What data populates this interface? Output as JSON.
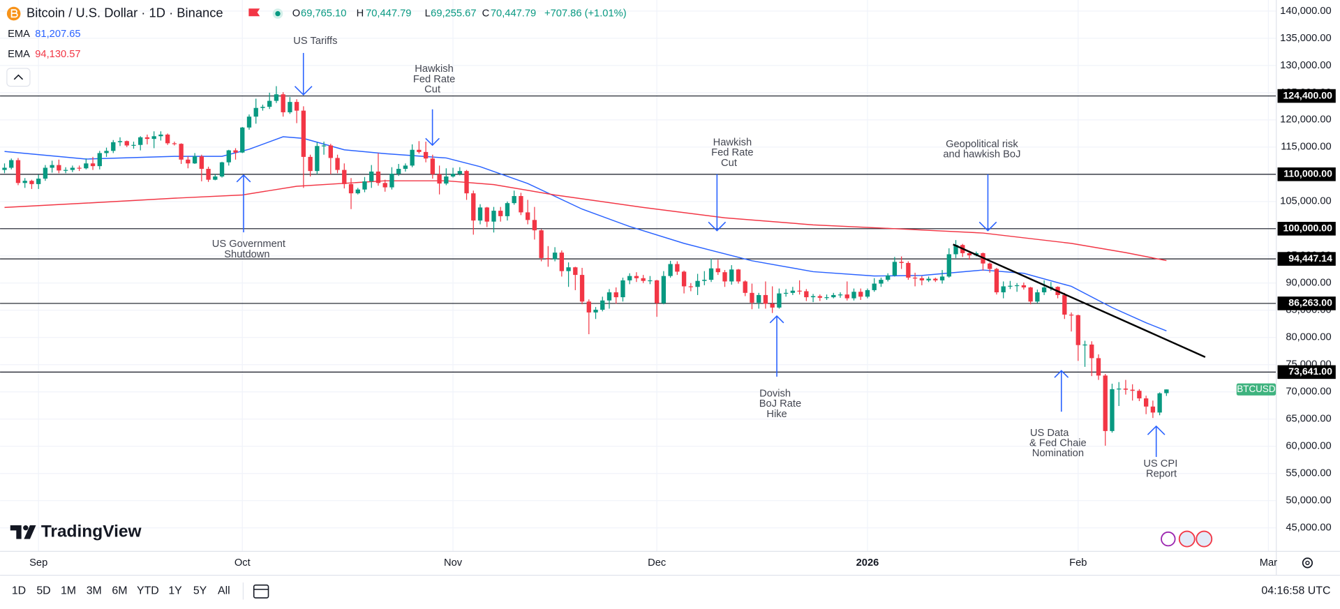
{
  "header": {
    "symbol": "Bitcoin / U.S. Dollar · 1D · Binance",
    "ohlc": [
      {
        "label": "O",
        "value": "69,765.10"
      },
      {
        "label": "H",
        "value": "70,447.79"
      },
      {
        "label": "L",
        "value": "69,255.67"
      },
      {
        "label": "C",
        "value": "70,447.79"
      }
    ],
    "change": "+707.86 (+1.01%)"
  },
  "toolbar": {
    "periods": [
      "1D",
      "5D",
      "1M",
      "3M",
      "6M",
      "YTD",
      "1Y",
      "5Y",
      "All"
    ],
    "time": "04:16:58 UTC"
  },
  "logo": "TradingView",
  "chart_data": {
    "type": "candlestick",
    "x": [
      2,
      3,
      4,
      5,
      6,
      7,
      8,
      9,
      10,
      11,
      12,
      13,
      14,
      15,
      16,
      17,
      18,
      19,
      20,
      21,
      22,
      23,
      24,
      25,
      26,
      27,
      28,
      29,
      30,
      31,
      32,
      33,
      34,
      35,
      36,
      37,
      38,
      39,
      40,
      41,
      42,
      43,
      44,
      45,
      46,
      47,
      48,
      49,
      50,
      51,
      52,
      53,
      54,
      55,
      56,
      57,
      58,
      59,
      60,
      61,
      62,
      63,
      64,
      65,
      66,
      67,
      68,
      69,
      70,
      71,
      72,
      73,
      74,
      75,
      76,
      77,
      78,
      79,
      80,
      81,
      82,
      83,
      84,
      85,
      86,
      87,
      88,
      89,
      90,
      91,
      92,
      93,
      94,
      95,
      96,
      97,
      98,
      99,
      100,
      101,
      102,
      103,
      104,
      105,
      106,
      107,
      108,
      109,
      110,
      111,
      112,
      113,
      114,
      115,
      116,
      117,
      118,
      119,
      120,
      121,
      122,
      123,
      124,
      125,
      126,
      127,
      128,
      129,
      130,
      131,
      132,
      133,
      134,
      135,
      136,
      137,
      138,
      139,
      140,
      141,
      142,
      143,
      144,
      145,
      146,
      147,
      148,
      149,
      150,
      151,
      152,
      153,
      154,
      155,
      156,
      157,
      158,
      159,
      160,
      161,
      162,
      163,
      164,
      165,
      166,
      167,
      168,
      169,
      170,
      171,
      172,
      173
    ],
    "open": [
      110800,
      111200,
      112600,
      108400,
      108800,
      108200,
      109200,
      111200,
      111700,
      110700,
      110800,
      111200,
      111100,
      112000,
      111500,
      113900,
      114300,
      115900,
      116100,
      115300,
      115400,
      116800,
      116500,
      117000,
      117300,
      115700,
      115600,
      112700,
      112000,
      113300,
      111000,
      109000,
      109600,
      112200,
      114400,
      114000,
      118600,
      120600,
      122200,
      122400,
      123500,
      124700,
      121400,
      123300,
      121700,
      113200,
      110600,
      115200,
      115300,
      113000,
      110800,
      108200,
      106500,
      107200,
      108700,
      110500,
      108400,
      107600,
      110100,
      111000,
      111600,
      114500,
      114100,
      112900,
      110000,
      108300,
      109600,
      110100,
      110600,
      106500,
      101500,
      103900,
      101300,
      103300,
      102300,
      104700,
      106000,
      103000,
      101600,
      99700,
      94600,
      94400,
      95600,
      92200,
      92900,
      91500,
      86600,
      84600,
      85100,
      86800,
      88300,
      87400,
      90500,
      91300,
      90900,
      90400,
      90500,
      86300,
      91300,
      93500,
      92100,
      89400,
      89300,
      90400,
      90600,
      92700,
      92000,
      90300,
      92500,
      90300,
      88200,
      86400,
      87800,
      86200,
      85500,
      88100,
      88200,
      88600,
      88500,
      87400,
      87600,
      87300,
      87400,
      87800,
      87900,
      87200,
      88400,
      87500,
      88700,
      89900,
      90600,
      91400,
      93900,
      93700,
      91000,
      90900,
      90500,
      90800,
      90500,
      91200,
      95300,
      97000,
      95500,
      95100,
      95500,
      93600,
      92600,
      88300,
      89400,
      89500,
      89600,
      89200,
      86600,
      88300,
      89200,
      89300,
      87800,
      84200,
      84100,
      78600,
      78700,
      76200,
      73000,
      62800,
      70500,
      70600,
      70400,
      70200,
      68800,
      67300,
      66200,
      69765.1
    ],
    "high": [
      112000,
      112900,
      113000,
      109300,
      109000,
      109900,
      111700,
      112500,
      112700,
      111300,
      111600,
      111600,
      112900,
      113200,
      114300,
      114900,
      116300,
      116800,
      116200,
      116000,
      117000,
      117300,
      117900,
      117900,
      117500,
      116000,
      115700,
      113300,
      113900,
      113600,
      111400,
      110000,
      112300,
      114500,
      114800,
      118700,
      121000,
      123900,
      122800,
      125000,
      126200,
      125100,
      124200,
      123800,
      122500,
      113600,
      115900,
      116000,
      115600,
      113600,
      112000,
      109300,
      107500,
      109500,
      111700,
      113900,
      109000,
      111300,
      111900,
      112000,
      115500,
      116100,
      116000,
      113600,
      111600,
      111100,
      111200,
      111300,
      110800,
      107000,
      104500,
      104000,
      104000,
      104000,
      105000,
      107000,
      106600,
      105300,
      104000,
      99900,
      96800,
      96600,
      96000,
      93800,
      93000,
      92800,
      87000,
      85600,
      87500,
      88900,
      89200,
      91000,
      91800,
      92000,
      91500,
      91300,
      90600,
      92200,
      94100,
      94000,
      92300,
      90000,
      91700,
      92200,
      94500,
      94300,
      92400,
      93300,
      92600,
      90500,
      89900,
      88200,
      90300,
      89400,
      89000,
      88900,
      89300,
      90500,
      88900,
      88000,
      87900,
      87900,
      88200,
      88300,
      90300,
      89000,
      89000,
      89000,
      90900,
      91000,
      91800,
      94800,
      94900,
      94000,
      91900,
      91300,
      91200,
      91000,
      92400,
      96400,
      97900,
      97200,
      95900,
      95800,
      95600,
      93800,
      92800,
      90300,
      90400,
      90000,
      90100,
      89300,
      88800,
      90500,
      90200,
      89400,
      88200,
      84600,
      84200,
      79400,
      79300,
      76900,
      73300,
      71500,
      71800,
      72200,
      71400,
      70500,
      69300,
      68400,
      69900,
      70447.79
    ],
    "low": [
      110200,
      110900,
      108000,
      107500,
      107300,
      107300,
      108800,
      110300,
      110200,
      110200,
      110400,
      110600,
      110900,
      110800,
      110900,
      113200,
      113900,
      115200,
      115000,
      114700,
      114400,
      115500,
      114800,
      116200,
      115400,
      115300,
      111900,
      111100,
      111900,
      108700,
      108600,
      108900,
      109400,
      111600,
      112700,
      113900,
      118200,
      119300,
      121700,
      122000,
      123100,
      120600,
      121100,
      119400,
      107500,
      109600,
      110000,
      113600,
      110000,
      110200,
      107400,
      103600,
      106300,
      106700,
      107500,
      107900,
      106800,
      107200,
      109700,
      110500,
      111300,
      113800,
      112200,
      109200,
      106300,
      108000,
      109400,
      109800,
      105300,
      98900,
      100800,
      100300,
      99300,
      101300,
      101500,
      104400,
      102500,
      100800,
      98000,
      94000,
      93000,
      94000,
      91200,
      89300,
      88700,
      86100,
      80600,
      83400,
      84800,
      85300,
      86200,
      86600,
      89800,
      90200,
      90000,
      89800,
      83800,
      86100,
      91000,
      91500,
      88100,
      88500,
      87800,
      89600,
      90200,
      91500,
      89300,
      89700,
      89900,
      87600,
      85200,
      85300,
      85300,
      84500,
      85300,
      87500,
      87800,
      87900,
      86700,
      86500,
      86700,
      86900,
      87200,
      87300,
      86800,
      86800,
      86900,
      87200,
      88400,
      89300,
      90300,
      91200,
      92600,
      90600,
      89400,
      89600,
      90200,
      90200,
      89900,
      91000,
      94600,
      94800,
      94300,
      94900,
      92300,
      91900,
      87900,
      87200,
      88900,
      88400,
      88800,
      86100,
      86300,
      87800,
      88600,
      87200,
      83400,
      81100,
      75700,
      74600,
      72900,
      72200,
      60100,
      62500,
      67400,
      69500,
      68400,
      68300,
      65900,
      65200,
      65700,
      69255.67
    ],
    "close": [
      111200,
      112600,
      108400,
      108800,
      108200,
      109200,
      111200,
      111700,
      110700,
      110800,
      111200,
      111100,
      112000,
      111500,
      113900,
      114300,
      115900,
      116100,
      115300,
      115400,
      116800,
      116500,
      117000,
      117300,
      115700,
      115600,
      112700,
      112000,
      113300,
      111000,
      109000,
      109600,
      112200,
      114400,
      114000,
      118600,
      120600,
      122200,
      122400,
      123500,
      124700,
      121400,
      123300,
      121700,
      113200,
      110600,
      115200,
      115300,
      113000,
      110800,
      108200,
      106500,
      107200,
      108700,
      110500,
      108400,
      107600,
      110100,
      111000,
      111600,
      114500,
      114100,
      112900,
      110000,
      108300,
      109600,
      110100,
      110600,
      106500,
      101500,
      103900,
      101300,
      103300,
      102300,
      104700,
      106000,
      103000,
      101600,
      99700,
      94600,
      94400,
      95600,
      92200,
      92900,
      91500,
      86600,
      84600,
      85100,
      86800,
      88300,
      87400,
      90500,
      91300,
      90900,
      90400,
      90500,
      86300,
      91300,
      93500,
      92100,
      89400,
      89300,
      90400,
      90600,
      92700,
      92000,
      90300,
      92500,
      90300,
      88200,
      86400,
      87800,
      86200,
      85500,
      88100,
      88200,
      88600,
      88500,
      87400,
      87600,
      87300,
      87400,
      87800,
      87900,
      87200,
      88400,
      87500,
      88700,
      89900,
      90600,
      91400,
      93900,
      93700,
      91000,
      90900,
      90500,
      90800,
      90500,
      91200,
      95300,
      97000,
      95500,
      95100,
      95500,
      93600,
      92600,
      88300,
      89400,
      89500,
      89600,
      89200,
      86600,
      88300,
      89200,
      89300,
      87800,
      84200,
      84100,
      78600,
      78700,
      76200,
      73000,
      62800,
      70500,
      70600,
      70400,
      70200,
      68800,
      67300,
      66200,
      69740,
      70447.79
    ],
    "colors": {
      "up": "#089981",
      "down": "#f23645"
    },
    "xlim": [
      1.34,
      189.1
    ],
    "xticks": [
      {
        "value": 7,
        "label": "Sep"
      },
      {
        "value": 37,
        "label": "Oct"
      },
      {
        "value": 68,
        "label": "Nov"
      },
      {
        "value": 98,
        "label": "Dec"
      },
      {
        "value": 129,
        "label": "2026"
      },
      {
        "value": 160,
        "label": "Feb"
      },
      {
        "value": 188,
        "label": "Mar"
      }
    ],
    "ylim": [
      40760,
      142041
    ],
    "yticks": [
      {
        "value": 45000,
        "label": "45,000.00"
      },
      {
        "value": 50000,
        "label": "50,000.00"
      },
      {
        "value": 55000,
        "label": "55,000.00"
      },
      {
        "value": 60000,
        "label": "60,000.00"
      },
      {
        "value": 65000,
        "label": "65,000.00"
      },
      {
        "value": 70000,
        "label": "70,000.00"
      },
      {
        "value": 75000,
        "label": "75,000.00"
      },
      {
        "value": 80000,
        "label": "80,000.00"
      },
      {
        "value": 85000,
        "label": "85,000.00"
      },
      {
        "value": 90000,
        "label": "90,000.00"
      },
      {
        "value": 95000,
        "label": "95,000.00"
      },
      {
        "value": 100000,
        "label": "100,000.00"
      },
      {
        "value": 105000,
        "label": "105,000.00"
      },
      {
        "value": 110000,
        "label": "110,000.00"
      },
      {
        "value": 115000,
        "label": "115,000.00"
      },
      {
        "value": 120000,
        "label": "120,000.00"
      },
      {
        "value": 125000,
        "label": "125,000.00"
      },
      {
        "value": 130000,
        "label": "130,000.00"
      },
      {
        "value": 135000,
        "label": "135,000.00"
      },
      {
        "value": 140000,
        "label": "140,000.00"
      }
    ],
    "grid": true,
    "series": [
      {
        "name": "EMA",
        "color": "#2962ff",
        "value_label": "81,207.65",
        "x": [
          2,
          14,
          27,
          34,
          38,
          43,
          46,
          52,
          58,
          67,
          72,
          79,
          87,
          94,
          102,
          112,
          121,
          130,
          137,
          146,
          152,
          159,
          165,
          170,
          173
        ],
        "values": [
          114200,
          112800,
          113300,
          113300,
          114600,
          116900,
          116600,
          114500,
          113800,
          113000,
          111400,
          108300,
          103600,
          100400,
          97300,
          94100,
          92100,
          91300,
          91400,
          92400,
          91800,
          89400,
          85500,
          82700,
          81207.65
        ]
      },
      {
        "name": "EMA",
        "color": "#f23645",
        "value_label": "94,130.57",
        "x": [
          2,
          14,
          27,
          37,
          45,
          58,
          67,
          74,
          83,
          96,
          108,
          121,
          133,
          146,
          159,
          167,
          173
        ],
        "values": [
          103900,
          104700,
          105600,
          106200,
          107800,
          108800,
          108800,
          108100,
          106200,
          103900,
          102000,
          100700,
          100000,
          99200,
          97300,
          95600,
          94130.57
        ]
      }
    ],
    "levels": [
      {
        "value": 124400,
        "label": "124,400.00"
      },
      {
        "value": 110000,
        "label": "110,000.00"
      },
      {
        "value": 100000,
        "label": "100,000.00"
      },
      {
        "value": 94447.14,
        "label": "94,447.14"
      },
      {
        "value": 86263,
        "label": "86,263.00"
      },
      {
        "value": 73641,
        "label": "73,641.00"
      }
    ],
    "trendline": {
      "x": [
        141.6,
        178.7
      ],
      "values": [
        97100,
        76400
      ]
    },
    "price_badge": "BTCUSD",
    "annotations": [
      [
        "US Tariffs"
      ],
      [
        "Hawkish",
        "Fed Rate",
        "Cut"
      ],
      [
        "US Government",
        "Shutdown"
      ],
      [
        "Hawkish",
        "Fed Rate",
        "Cut"
      ],
      [
        "Geopolitical risk",
        "and hawkish BoJ"
      ],
      [
        "Dovish",
        "BoJ Rate",
        "Hike"
      ],
      [
        "US Data",
        "& Fed Chaie",
        "Nomination"
      ],
      [
        "US CPI",
        "Report"
      ]
    ]
  }
}
